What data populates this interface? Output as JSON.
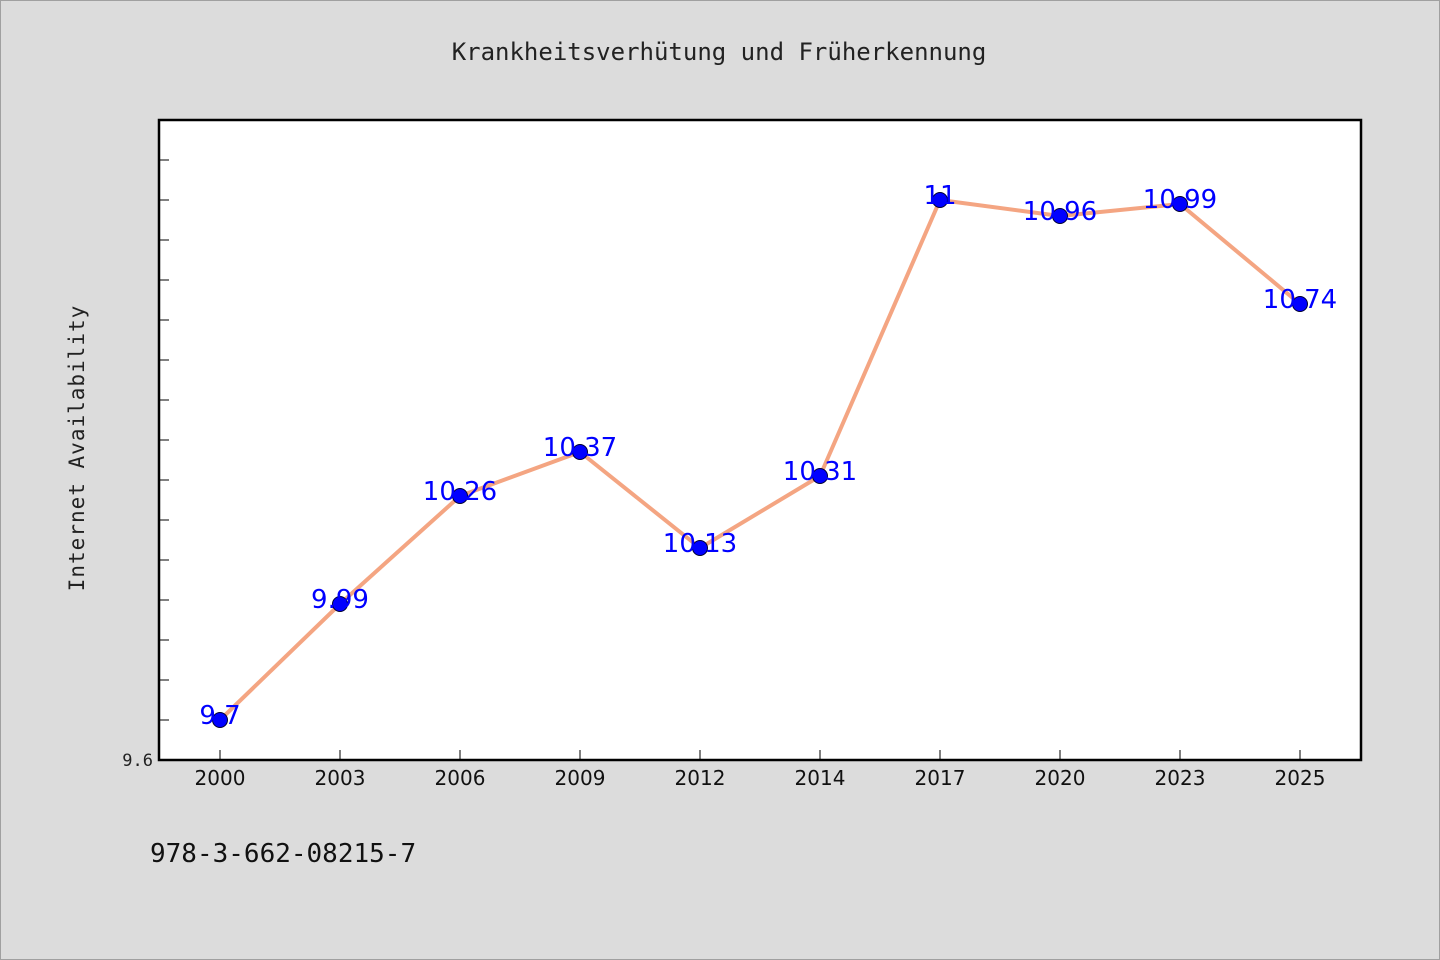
{
  "chart_data": {
    "type": "line",
    "title": "Krankheitsverhütung und Früherkennung",
    "xlabel": "",
    "ylabel": "Internet Availability",
    "categories": [
      "2000",
      "2003",
      "2006",
      "2009",
      "2012",
      "2014",
      "2017",
      "2020",
      "2023",
      "2025"
    ],
    "series": [
      {
        "values": [
          9.7,
          9.99,
          10.26,
          10.37,
          10.13,
          10.31,
          11,
          10.96,
          10.99,
          10.74
        ],
        "labels": [
          "9.7",
          "9.99",
          "10.26",
          "10.37",
          "10.13",
          "10.31",
          "11",
          "10.96",
          "10.99",
          "10.74"
        ]
      }
    ],
    "ylim": [
      9.6,
      11.2
    ],
    "yticks_labeled": [
      "9.6"
    ],
    "grid": false,
    "line_color": "#f4a582",
    "marker_color": "#0000ff",
    "label_color": "#0000ff"
  },
  "footer_text": "978-3-662-08215-7"
}
